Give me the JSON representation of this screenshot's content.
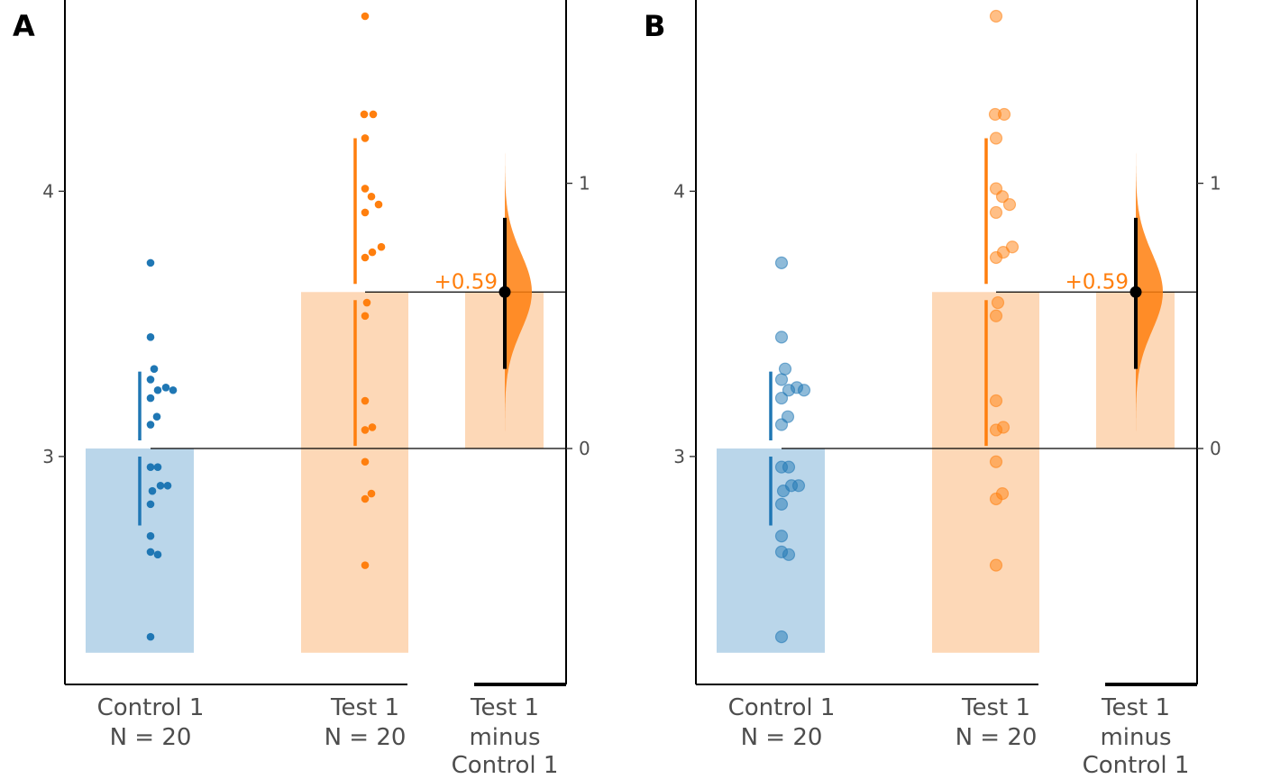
{
  "colors": {
    "control": "#1f77b4",
    "control_bar": "#bad6ea",
    "test": "#ff7f0e",
    "test_bar": "#fdd8b7",
    "ci": "#000000"
  },
  "chart_data": [
    {
      "panel_tag": "A",
      "type": "scatter",
      "point_style": "solid",
      "title": "",
      "groups": [
        {
          "label_line1": "Control 1",
          "label_line2": "N = 20",
          "mean": 3.03,
          "sd": 0.29,
          "bar_bottom": 2.26,
          "values": [
            3.73,
            3.45,
            3.33,
            3.29,
            3.26,
            3.25,
            3.25,
            3.22,
            3.15,
            3.12,
            2.96,
            2.96,
            2.89,
            2.89,
            2.87,
            2.82,
            2.7,
            2.64,
            2.63,
            2.32
          ]
        },
        {
          "label_line1": "Test 1",
          "label_line2": "N = 20",
          "mean": 3.62,
          "sd": 0.58,
          "bar_bottom": 2.26,
          "values": [
            4.66,
            4.29,
            4.29,
            4.2,
            4.01,
            3.98,
            3.95,
            3.92,
            3.79,
            3.77,
            3.75,
            3.58,
            3.53,
            3.21,
            3.11,
            3.1,
            2.98,
            2.86,
            2.84,
            2.59
          ]
        }
      ],
      "ylim": [
        2.2,
        4.75
      ],
      "yticks": [
        3,
        4
      ],
      "delta": {
        "label_line1": "Test 1",
        "label_line2": "minus",
        "label_line3": "Control 1",
        "value": 0.59,
        "label": "+0.59",
        "ci_low": 0.3,
        "ci_high": 0.87,
        "ticks": [
          0,
          1
        ]
      }
    },
    {
      "panel_tag": "B",
      "type": "scatter",
      "point_style": "translucent",
      "title": "",
      "groups": [
        {
          "label_line1": "Control 1",
          "label_line2": "N = 20",
          "mean": 3.03,
          "sd": 0.29,
          "bar_bottom": 2.26,
          "values": [
            3.73,
            3.45,
            3.33,
            3.29,
            3.26,
            3.25,
            3.25,
            3.22,
            3.15,
            3.12,
            2.96,
            2.96,
            2.89,
            2.89,
            2.87,
            2.82,
            2.7,
            2.64,
            2.63,
            2.32
          ]
        },
        {
          "label_line1": "Test 1",
          "label_line2": "N = 20",
          "mean": 3.62,
          "sd": 0.58,
          "bar_bottom": 2.26,
          "values": [
            4.66,
            4.29,
            4.29,
            4.2,
            4.01,
            3.98,
            3.95,
            3.92,
            3.79,
            3.77,
            3.75,
            3.58,
            3.53,
            3.21,
            3.11,
            3.1,
            2.98,
            2.86,
            2.84,
            2.59
          ]
        }
      ],
      "ylim": [
        2.2,
        4.75
      ],
      "yticks": [
        3,
        4
      ],
      "delta": {
        "label_line1": "Test 1",
        "label_line2": "minus",
        "label_line3": "Control 1",
        "value": 0.59,
        "label": "+0.59",
        "ci_low": 0.3,
        "ci_high": 0.87,
        "ticks": [
          0,
          1
        ]
      }
    }
  ]
}
